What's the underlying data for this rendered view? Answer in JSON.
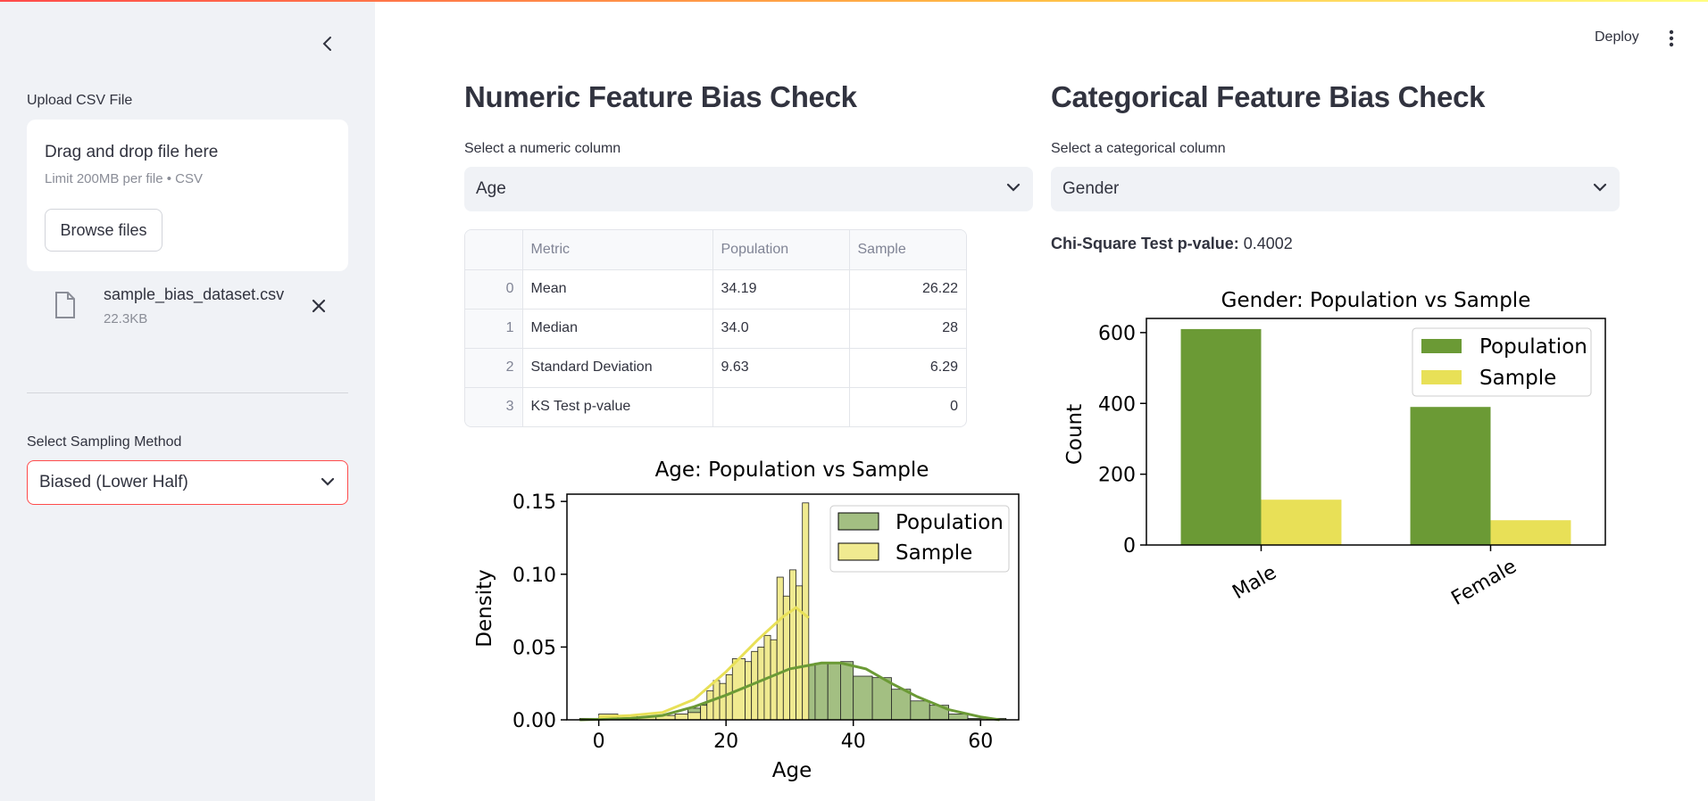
{
  "sidebar": {
    "upload_label": "Upload CSV File",
    "dropzone_title": "Drag and drop file here",
    "dropzone_limit": "Limit 200MB per file • CSV",
    "browse_label": "Browse files",
    "file_name": "sample_bias_dataset.csv",
    "file_size": "22.3KB",
    "sampling_label": "Select Sampling Method",
    "sampling_value": "Biased (Lower Half)"
  },
  "header": {
    "deploy_label": "Deploy"
  },
  "numeric": {
    "title": "Numeric Feature Bias Check",
    "select_label": "Select a numeric column",
    "select_value": "Age",
    "table": {
      "columns": [
        "",
        "Metric",
        "Population",
        "Sample"
      ],
      "rows": [
        [
          "0",
          "Mean",
          "34.19",
          "26.22"
        ],
        [
          "1",
          "Median",
          "34.0",
          "28"
        ],
        [
          "2",
          "Standard Deviation",
          "9.63",
          "6.29"
        ],
        [
          "3",
          "KS Test p-value",
          "",
          "0"
        ]
      ]
    }
  },
  "categorical": {
    "title": "Categorical Feature Bias Check",
    "select_label": "Select a categorical column",
    "select_value": "Gender",
    "chi_label": "Chi-Square Test p-value:",
    "chi_value": "0.4002"
  },
  "colors": {
    "population": "#6b9a35",
    "sample": "#e8e057",
    "population_hist": "#a3bf82",
    "sample_hist": "#f0ea90",
    "accent": "#ff4b4b"
  },
  "chart_data": [
    {
      "type": "histogram",
      "title": "Age: Population vs Sample",
      "xlabel": "Age",
      "ylabel": "Density",
      "xlim": [
        -5,
        66
      ],
      "ylim": [
        0,
        0.155
      ],
      "xticks": [
        0,
        20,
        40,
        60
      ],
      "yticks": [
        0.0,
        0.05,
        0.1,
        0.15
      ],
      "ytick_labels": [
        "0.00",
        "0.05",
        "0.10",
        "0.15"
      ],
      "legend": "top-right",
      "series": [
        {
          "name": "Population",
          "bins": [
            [
              -3,
              0.001
            ],
            [
              0,
              0.001
            ],
            [
              3,
              0.001
            ],
            [
              6,
              0.001
            ],
            [
              9,
              0.002
            ],
            [
              12,
              0.004
            ],
            [
              14,
              0.008
            ],
            [
              16,
              0.011
            ],
            [
              18,
              0.016
            ],
            [
              20,
              0.019
            ],
            [
              22,
              0.022
            ],
            [
              24,
              0.026
            ],
            [
              26,
              0.03
            ],
            [
              28,
              0.034
            ],
            [
              30,
              0.036
            ],
            [
              32,
              0.038
            ],
            [
              34,
              0.039
            ],
            [
              36,
              0.039
            ],
            [
              38,
              0.04
            ],
            [
              40,
              0.03
            ],
            [
              43,
              0.029
            ],
            [
              46,
              0.021
            ],
            [
              49,
              0.013
            ],
            [
              52,
              0.01
            ],
            [
              55,
              0.004
            ],
            [
              58,
              0.001
            ],
            [
              61,
              0.001
            ]
          ],
          "kde": [
            [
              -3,
              0.0
            ],
            [
              5,
              0.001
            ],
            [
              10,
              0.003
            ],
            [
              15,
              0.009
            ],
            [
              20,
              0.017
            ],
            [
              25,
              0.026
            ],
            [
              30,
              0.035
            ],
            [
              35,
              0.039
            ],
            [
              38,
              0.039
            ],
            [
              42,
              0.035
            ],
            [
              46,
              0.025
            ],
            [
              50,
              0.016
            ],
            [
              55,
              0.007
            ],
            [
              60,
              0.002
            ],
            [
              63,
              0.0
            ]
          ]
        },
        {
          "name": "Sample",
          "bins": [
            [
              0,
              0.004
            ],
            [
              3,
              0.003
            ],
            [
              6,
              0.002
            ],
            [
              9,
              0.003
            ],
            [
              12,
              0.004
            ],
            [
              14,
              0.005
            ],
            [
              16,
              0.01
            ],
            [
              17,
              0.02
            ],
            [
              18,
              0.027
            ],
            [
              19,
              0.025
            ],
            [
              20,
              0.031
            ],
            [
              21,
              0.042
            ],
            [
              23,
              0.04
            ],
            [
              24,
              0.047
            ],
            [
              25,
              0.05
            ],
            [
              26,
              0.058
            ],
            [
              27,
              0.055
            ],
            [
              28,
              0.098
            ],
            [
              29,
              0.085
            ],
            [
              30,
              0.103
            ],
            [
              31,
              0.092
            ],
            [
              32,
              0.149
            ]
          ],
          "kde": [
            [
              0,
              0.002
            ],
            [
              5,
              0.003
            ],
            [
              10,
              0.005
            ],
            [
              15,
              0.014
            ],
            [
              20,
              0.033
            ],
            [
              25,
              0.055
            ],
            [
              29,
              0.071
            ],
            [
              31,
              0.077
            ],
            [
              33,
              0.07
            ]
          ]
        }
      ]
    },
    {
      "type": "bar",
      "title": "Gender: Population vs Sample",
      "xlabel": "",
      "ylabel": "Count",
      "categories": [
        "Male",
        "Female"
      ],
      "ylim": [
        0,
        640
      ],
      "yticks": [
        0,
        200,
        400,
        600
      ],
      "legend": "top-right",
      "series": [
        {
          "name": "Population",
          "values": [
            610,
            390
          ]
        },
        {
          "name": "Sample",
          "values": [
            128,
            70
          ]
        }
      ]
    }
  ]
}
